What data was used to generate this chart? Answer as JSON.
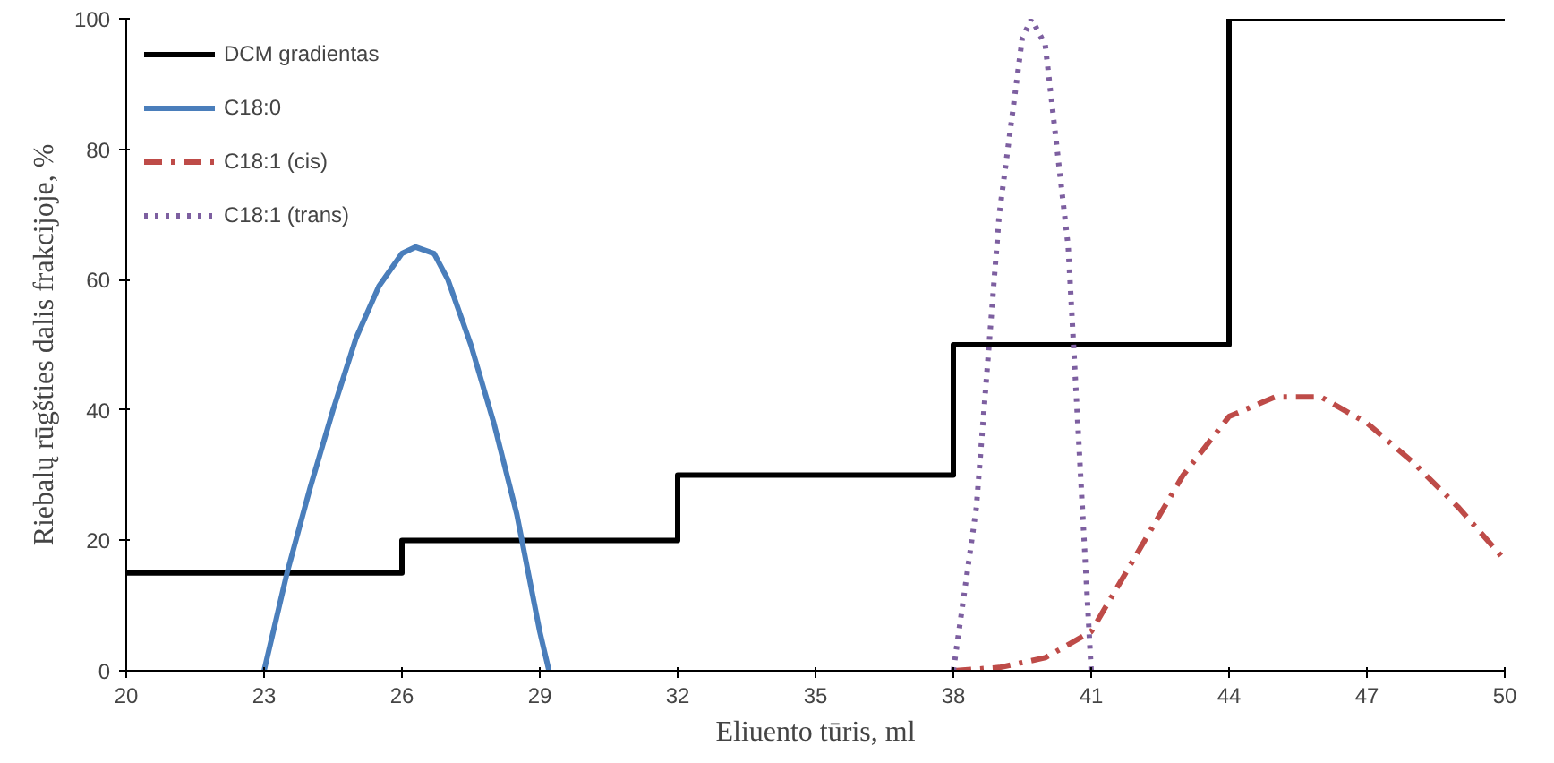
{
  "chart_data": {
    "type": "line",
    "xlabel": "Eliuento tūris, ml",
    "ylabel": "Riebalų rūgšties dalis frakcijoje, %",
    "xlim": [
      20,
      50
    ],
    "xticks": [
      20,
      23,
      26,
      29,
      32,
      35,
      38,
      41,
      44,
      47,
      50
    ],
    "ylim": [
      0,
      100
    ],
    "yticks": [
      0,
      20,
      40,
      60,
      80,
      100
    ],
    "grid": false,
    "legend": "top left",
    "marker": "none",
    "series": [
      {
        "name": "DCM gradientas",
        "type": "step",
        "color": "#000000",
        "line_style": "solid",
        "x": [
          20,
          26,
          32,
          38,
          44,
          50
        ],
        "values": [
          15,
          20,
          30,
          50,
          100,
          100
        ]
      },
      {
        "name": "C18:0",
        "color": "#4a7ebb",
        "line_style": "solid",
        "x": [
          23,
          23.5,
          24,
          24.5,
          25,
          25.5,
          26,
          26.3,
          26.7,
          27,
          27.5,
          28,
          28.5,
          29,
          29.2
        ],
        "values": [
          0,
          15,
          28,
          40,
          51,
          59,
          64,
          65,
          64,
          60,
          50,
          38,
          24,
          6,
          0
        ]
      },
      {
        "name": "C18:1 (cis)",
        "color": "#be4b48",
        "line_style": "dashdot",
        "x": [
          38,
          39,
          40,
          41,
          42,
          43,
          44,
          45,
          46,
          47,
          48,
          49,
          50
        ],
        "values": [
          0,
          0.5,
          2,
          6,
          18,
          30,
          39,
          42,
          42,
          38,
          32,
          25,
          17
        ]
      },
      {
        "name": "C18:1 (trans)",
        "color": "#7d5fa0",
        "line_style": "dotted",
        "x": [
          38,
          38.5,
          39,
          39.5,
          39.7,
          40,
          40.5,
          41
        ],
        "values": [
          0,
          25,
          70,
          97,
          100,
          96,
          65,
          0
        ]
      }
    ]
  }
}
